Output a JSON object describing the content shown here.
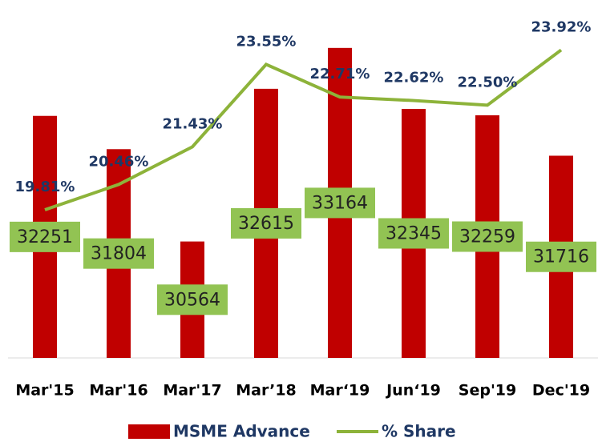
{
  "chart_data": {
    "type": "bar-line",
    "categories": [
      "Mar'15",
      "Mar'16",
      "Mar'17",
      "Mar’18",
      "Mar‘19",
      "Jun‘19",
      "Sep'19",
      "Dec'19"
    ],
    "series": [
      {
        "name": "MSME Advance",
        "type": "bar",
        "color": "#c00000",
        "values": [
          32251,
          31804,
          30564,
          32615,
          33164,
          32345,
          32259,
          31716
        ]
      },
      {
        "name": "% Share",
        "type": "line",
        "axis": "y2",
        "color": "#8db33a",
        "values": [
          19.81,
          20.46,
          21.43,
          23.55,
          22.71,
          22.62,
          22.5,
          23.92
        ],
        "value_labels": [
          "19.81%",
          "20.46%",
          "21.43%",
          "23.55%",
          "22.71%",
          "22.62%",
          "22.50%",
          "23.92%"
        ]
      }
    ],
    "ylim": [
      29000,
      33700
    ],
    "y2lim": [
      16,
      25
    ],
    "legend": "bottom"
  }
}
